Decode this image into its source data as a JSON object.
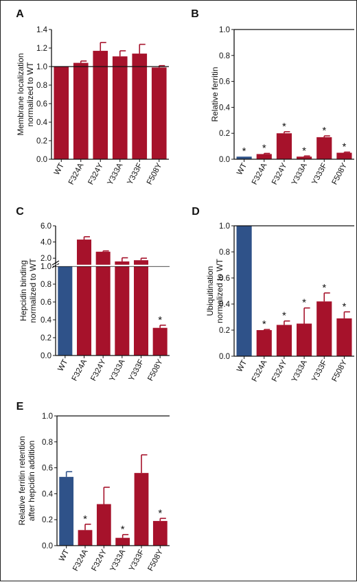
{
  "figure": {
    "colors": {
      "wt": "#2f5289",
      "mutant": "#a6122b",
      "axis": "#111111",
      "border": "#1f1f1f"
    }
  },
  "chart_data": [
    {
      "panel": "A",
      "type": "bar",
      "ylabel": [
        "Membrane localization",
        "normalized to WT"
      ],
      "categories": [
        "WT",
        "F324A",
        "F324Y",
        "Y333A",
        "Y333F",
        "F508Y"
      ],
      "values": [
        1.0,
        1.04,
        1.17,
        1.11,
        1.14,
        0.99
      ],
      "errors": [
        0.0,
        0.02,
        0.09,
        0.06,
        0.1,
        0.02
      ],
      "significant": [
        false,
        false,
        false,
        false,
        false,
        false
      ],
      "bar_colors": [
        "mutant",
        "mutant",
        "mutant",
        "mutant",
        "mutant",
        "mutant"
      ],
      "reference_line": 1.0,
      "ylim": [
        0,
        1.4
      ],
      "yticks": [
        "0.0",
        "0.2",
        "0.4",
        "0.6",
        "0.8",
        "1.0",
        "1.2",
        "1.4"
      ],
      "grid": false
    },
    {
      "panel": "B",
      "type": "bar",
      "ylabel": [
        "Relative ferritin"
      ],
      "categories": [
        "WT",
        "F324A",
        "F324Y",
        "Y333A",
        "Y333F",
        "F508Y"
      ],
      "values": [
        0.02,
        0.04,
        0.2,
        0.02,
        0.17,
        0.05
      ],
      "errors": [
        0.0,
        0.005,
        0.012,
        0.005,
        0.01,
        0.005
      ],
      "significant": [
        true,
        true,
        true,
        true,
        true,
        true
      ],
      "bar_colors": [
        "wt",
        "mutant",
        "mutant",
        "mutant",
        "mutant",
        "mutant"
      ],
      "reference_line": 1.0,
      "ylim": [
        0,
        1.0
      ],
      "yticks": [
        "0.0",
        "0.2",
        "0.4",
        "0.6",
        "0.8",
        "1.0"
      ],
      "grid": false
    },
    {
      "panel": "C",
      "type": "bar",
      "ylabel": [
        "Hepcidin binding",
        "normalized to WT"
      ],
      "categories": [
        "WT",
        "F324A",
        "F324Y",
        "Y333A",
        "Y333F",
        "F508Y"
      ],
      "values": [
        1.0,
        4.3,
        2.8,
        1.6,
        1.75,
        0.31
      ],
      "errors": [
        0.0,
        0.35,
        0.1,
        0.45,
        0.25,
        0.03
      ],
      "significant": [
        false,
        false,
        false,
        false,
        false,
        true
      ],
      "bar_colors": [
        "wt",
        "mutant",
        "mutant",
        "mutant",
        "mutant",
        "mutant"
      ],
      "reference_line": 1.0,
      "ylim": [
        0,
        6.0
      ],
      "axis_break": {
        "lower": [
          0,
          1.05
        ],
        "upper": [
          1.0,
          6.0
        ]
      },
      "yticks_lower": [
        "0.0",
        "0.2",
        "0.4",
        "0.6",
        "0.8",
        "1.0"
      ],
      "yticks_upper": [
        "1.0",
        "2.0",
        "4.0",
        "6.0"
      ],
      "grid": false
    },
    {
      "panel": "D",
      "type": "bar",
      "ylabel": [
        "Ubiquitination",
        "normalized to WT"
      ],
      "categories": [
        "WT",
        "F324A",
        "F324Y",
        "Y333A",
        "Y333F",
        "F508Y"
      ],
      "values": [
        1.0,
        0.2,
        0.24,
        0.25,
        0.42,
        0.29
      ],
      "errors": [
        0.0,
        0.005,
        0.03,
        0.12,
        0.065,
        0.05
      ],
      "significant": [
        false,
        true,
        true,
        true,
        true,
        true
      ],
      "bar_colors": [
        "wt",
        "mutant",
        "mutant",
        "mutant",
        "mutant",
        "mutant"
      ],
      "reference_line": 1.0,
      "ylim": [
        0,
        1.0
      ],
      "yticks": [
        "0.0",
        "0.2",
        "0.4",
        "0.6",
        "0.8",
        "1.0"
      ],
      "grid": false
    },
    {
      "panel": "E",
      "type": "bar",
      "ylabel": [
        "Relative ferritin retention",
        "after hepcidin addition"
      ],
      "categories": [
        "WT",
        "F324A",
        "F324Y",
        "Y333A",
        "Y333F",
        "F508Y"
      ],
      "values": [
        0.53,
        0.12,
        0.32,
        0.06,
        0.56,
        0.19
      ],
      "errors": [
        0.04,
        0.045,
        0.13,
        0.025,
        0.14,
        0.02
      ],
      "significant": [
        false,
        true,
        false,
        true,
        false,
        true
      ],
      "bar_colors": [
        "wt",
        "mutant",
        "mutant",
        "mutant",
        "mutant",
        "mutant"
      ],
      "reference_line": 1.0,
      "ylim": [
        0,
        1.0
      ],
      "yticks": [
        "0.0",
        "0.2",
        "0.4",
        "0.6",
        "0.8",
        "1.0"
      ],
      "grid": false
    }
  ]
}
